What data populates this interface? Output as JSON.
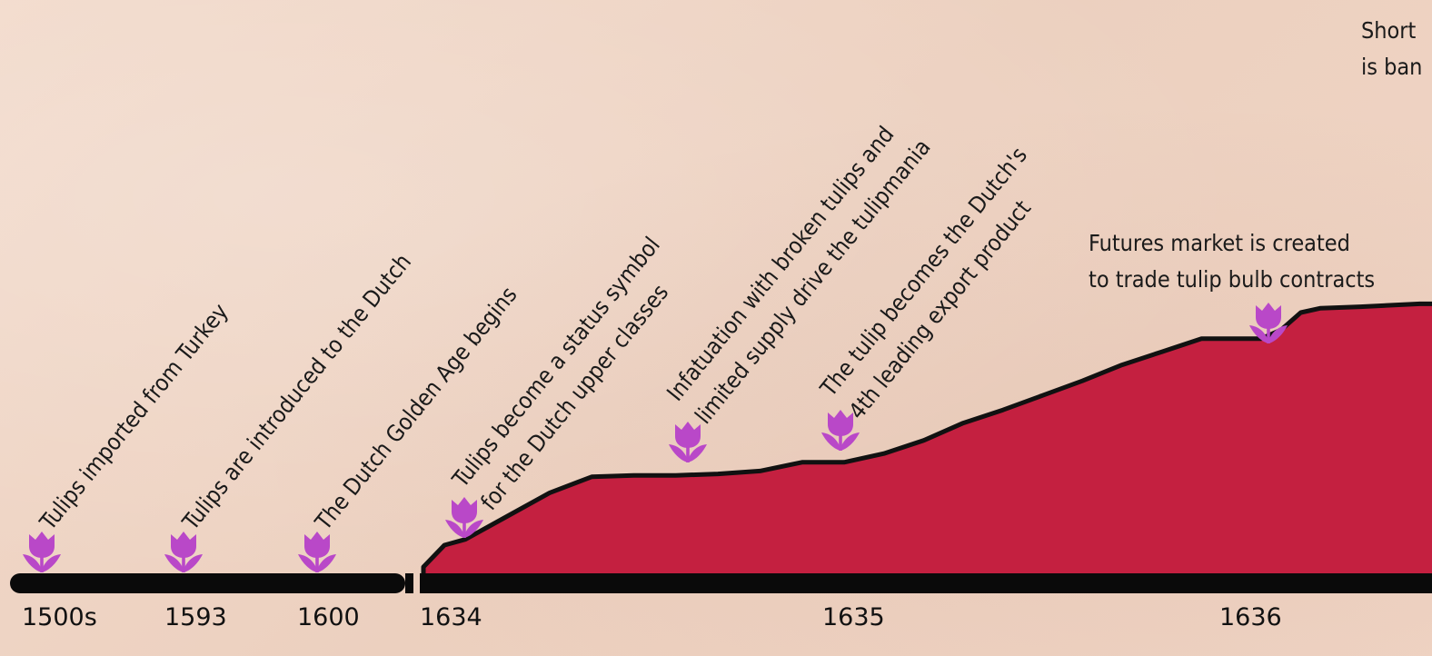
{
  "chart_data": {
    "type": "area",
    "title": "",
    "xlabel": "",
    "ylabel": "",
    "x_ticks": [
      "1500s",
      "1593",
      "1600",
      "1634",
      "1635",
      "1636"
    ],
    "axis_break_after": "1600",
    "series": [
      {
        "color": "#c42040",
        "x": [
          1634.0,
          1634.05,
          1634.1,
          1634.2,
          1634.3,
          1634.4,
          1634.5,
          1634.6,
          1634.7,
          1634.8,
          1634.9,
          1635.0,
          1635.1,
          1635.2,
          1635.3,
          1635.4,
          1635.5,
          1635.6,
          1635.7,
          1635.8,
          1635.9,
          1636.0,
          1636.05,
          1636.1,
          1636.15,
          1636.2,
          1636.3,
          1636.45
        ],
        "values": [
          5,
          20,
          24,
          40,
          56,
          67,
          68,
          68,
          69,
          71,
          77,
          77,
          83,
          92,
          104,
          113,
          123,
          133,
          144,
          153,
          162,
          162,
          162,
          168,
          180,
          183,
          184,
          186
        ]
      }
    ],
    "ylim": [
      0,
      250
    ]
  },
  "events": [
    {
      "text": [
        "Tulips imported from Turkey"
      ],
      "tick": "1500s"
    },
    {
      "text": [
        "Tulips are introduced to the Dutch"
      ],
      "tick": "1593"
    },
    {
      "text": [
        "The Dutch Golden Age begins"
      ],
      "tick": "1600"
    },
    {
      "text": [
        "Tulips become a status symbol",
        "for the Dutch upper classes"
      ],
      "tick": "1634"
    },
    {
      "text": [
        "Infatuation with broken tulips and",
        "limited supply drive the tulipmania"
      ],
      "tick": "1634"
    },
    {
      "text": [
        "The tulip becomes the Dutch's",
        "4th leading export product"
      ],
      "tick": "1635"
    },
    {
      "text": [
        "Futures market is created",
        "to trade tulip bulb contracts"
      ],
      "tick": "1636"
    },
    {
      "text": [
        "Short",
        "is ban"
      ],
      "tick": ""
    }
  ],
  "colors": {
    "area": "#c42040",
    "outline": "#111111",
    "axis": "#0a0a0a",
    "tulip": "#b948c8"
  },
  "icons": [
    "tulip-icon"
  ]
}
